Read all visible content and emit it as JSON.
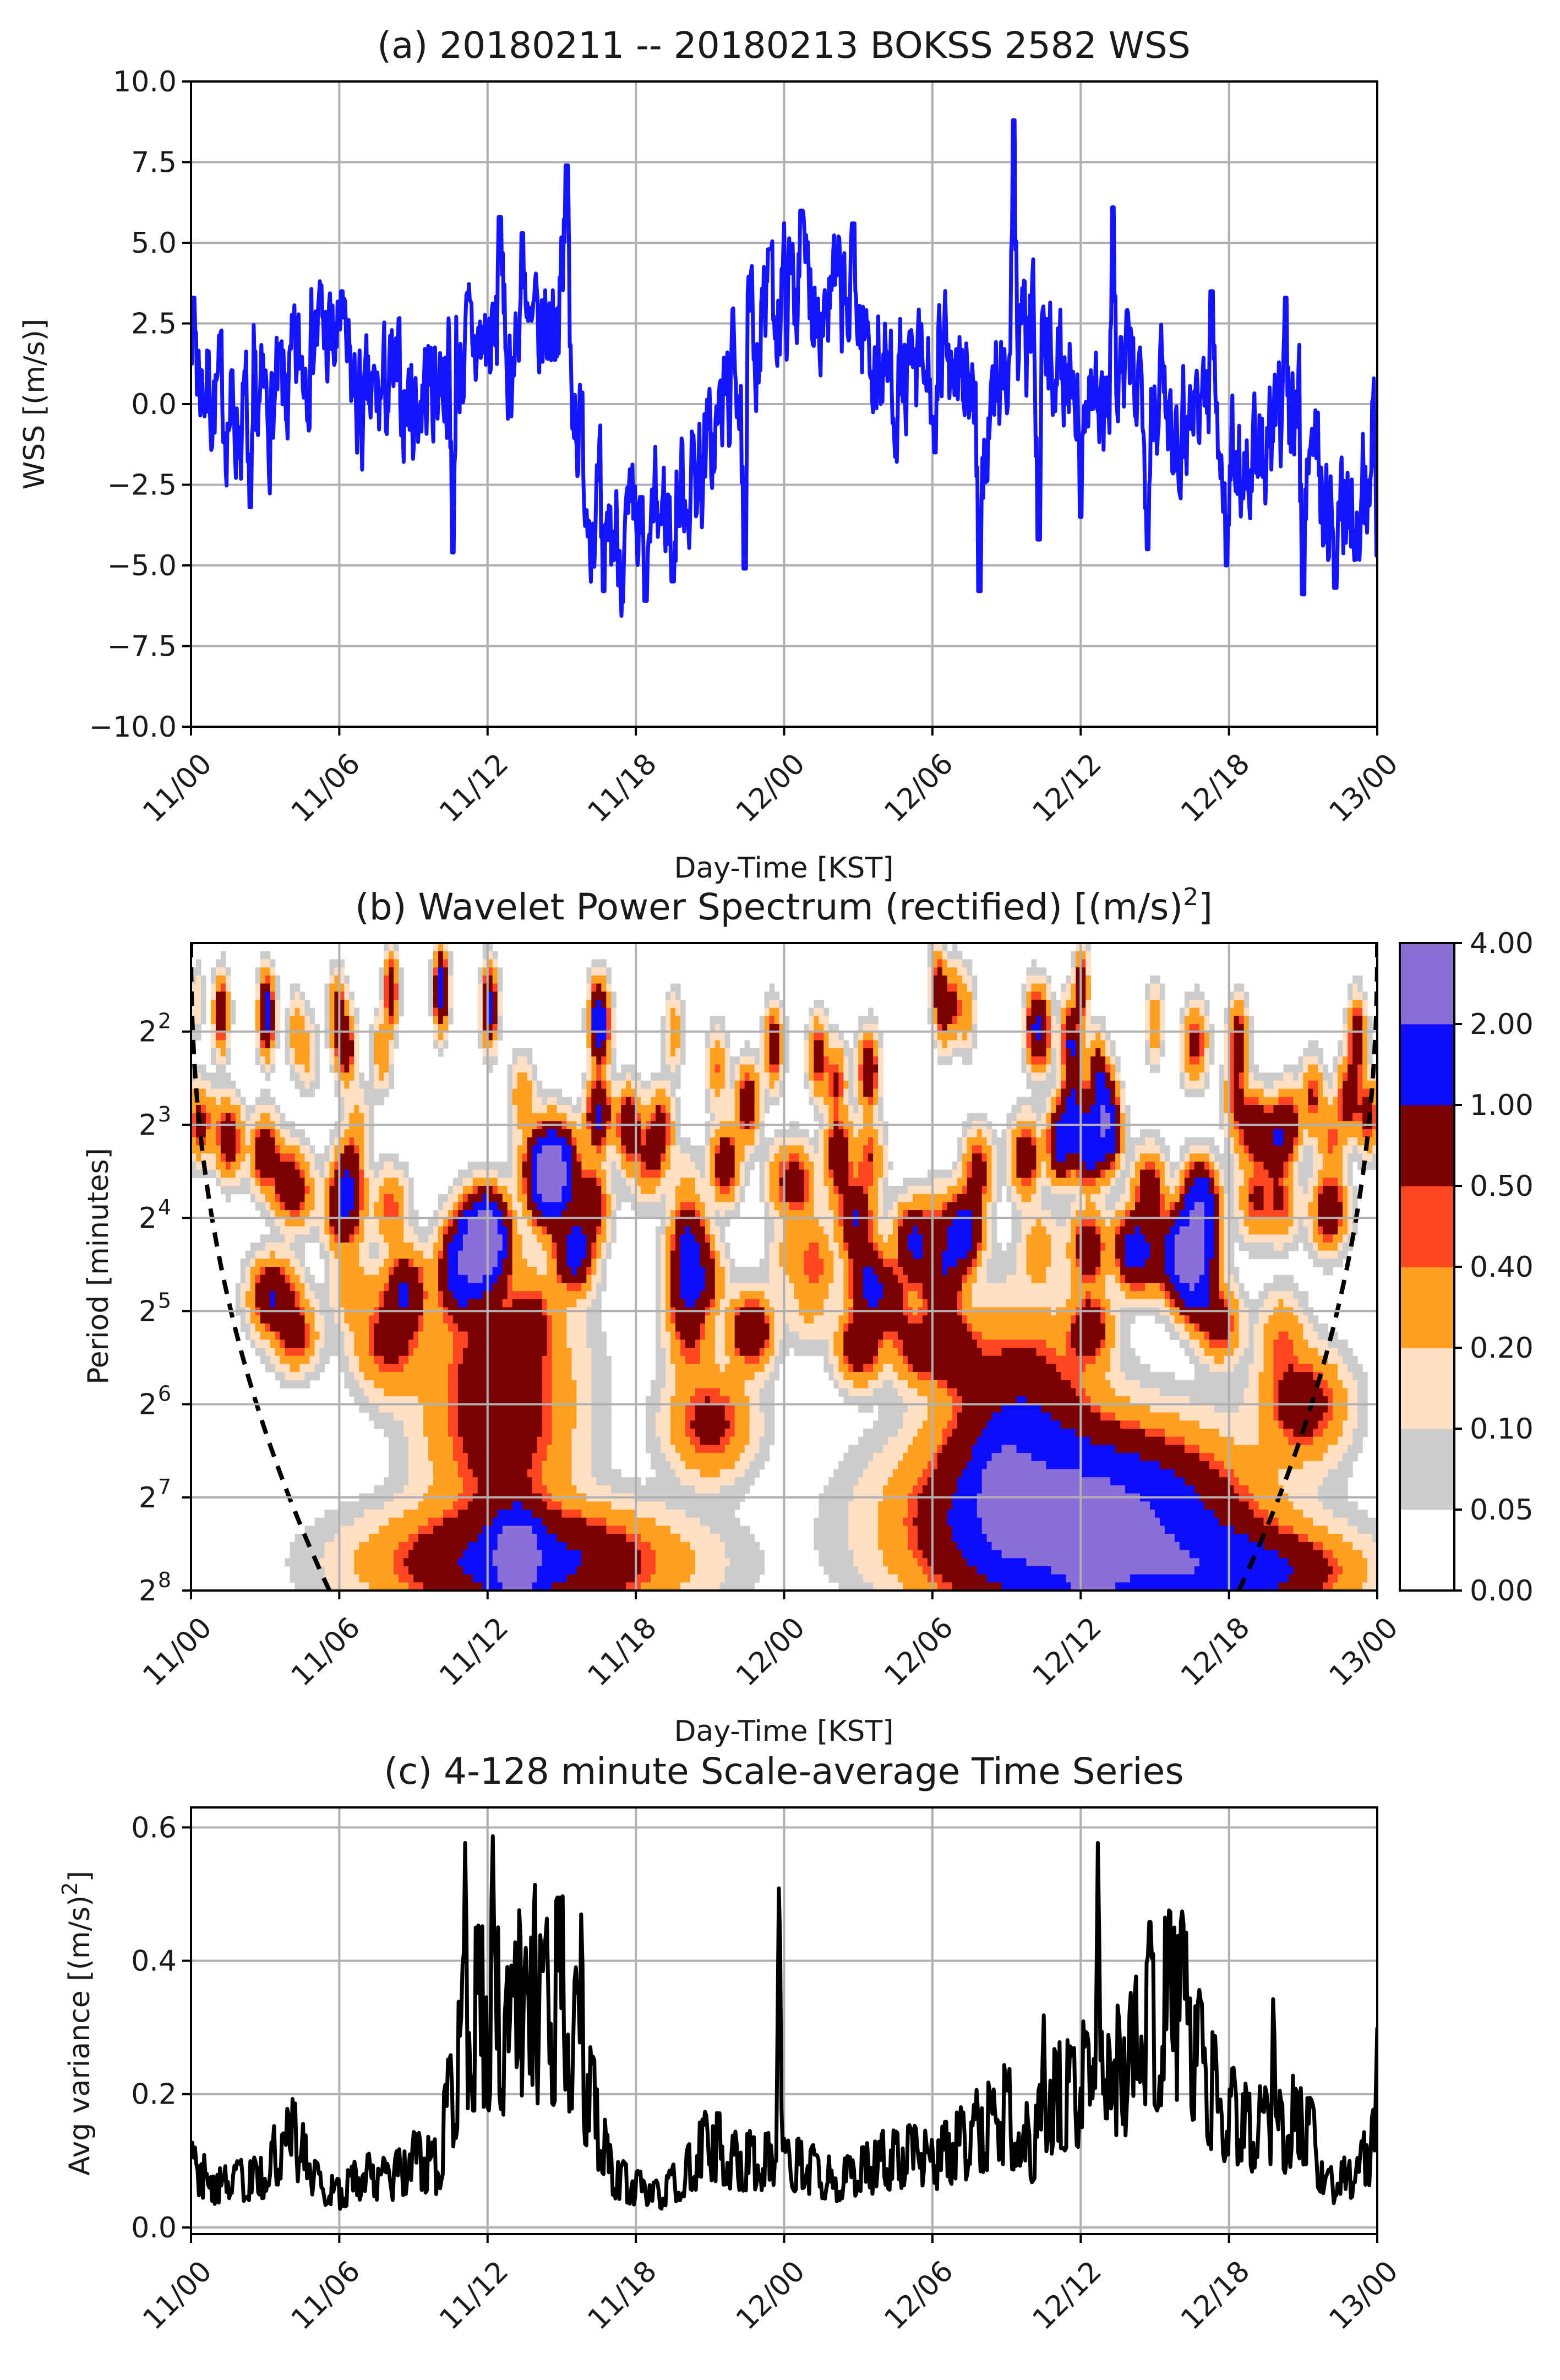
{
  "figure": {
    "panel_a_title": "(a) 20180211 -- 20180213  BOKSS 2582 WSS",
    "panel_b_title": "(b) Wavelet Power Spectrum (rectified) [(m/s)²]",
    "panel_c_title": "(c) 4-128 minute Scale-average Time Series",
    "shared_xlabel": "Day-Time [KST]"
  },
  "chart_data": [
    {
      "id": "a",
      "type": "line",
      "title": "(a) 20180211 -- 20180213  BOKSS 2582 WSS",
      "xlabel": "Day-Time [KST]",
      "ylabel": "WSS  [(m/s)]",
      "x_ticks": [
        "11/00",
        "11/06",
        "11/12",
        "11/18",
        "12/00",
        "12/06",
        "12/12",
        "12/18",
        "13/00"
      ],
      "xlim_hours": [
        0,
        48
      ],
      "ylim": [
        -10.0,
        10.0
      ],
      "y_ticks": [
        "10.0",
        "7.5",
        "5.0",
        "2.5",
        "0.0",
        "−2.5",
        "−5.0",
        "−7.5",
        "−10.0"
      ],
      "grid": true,
      "series": [
        {
          "name": "WSS",
          "color": "#1414ff",
          "x_hours": [
            0,
            1,
            2,
            3,
            4,
            5,
            6,
            7,
            8,
            9,
            10,
            11,
            12,
            13,
            14,
            15,
            16,
            17,
            18,
            19,
            20,
            21,
            22,
            23,
            24,
            25,
            26,
            27,
            28,
            29,
            30,
            31,
            32,
            33,
            34,
            35,
            36,
            37,
            38,
            39,
            40,
            41,
            42,
            43,
            44,
            45,
            46,
            47,
            48
          ],
          "values": [
            1.5,
            0.2,
            -0.5,
            -0.2,
            0.3,
            2.5,
            1.5,
            -0.5,
            0.5,
            0,
            1.0,
            1.5,
            2.0,
            1.5,
            1.8,
            3.5,
            -2.5,
            -4.0,
            -4.5,
            -3.5,
            -2.5,
            -1.5,
            1.0,
            2.5,
            3.5,
            3.8,
            3.2,
            2.5,
            1.0,
            0.5,
            0.8,
            2.0,
            -1.5,
            1.5,
            2.0,
            1.0,
            1.5,
            -0.5,
            1.0,
            0.5,
            -0.5,
            0.5,
            -1.5,
            -2.0,
            -1.0,
            0.5,
            -3.5,
            -3.0,
            -1.5
          ],
          "extremes": [
            {
              "x_hours": 0.1,
              "value": 3.3
            },
            {
              "x_hours": 2.4,
              "value": -3.2
            },
            {
              "x_hours": 6.1,
              "value": 3.5
            },
            {
              "x_hours": 10.6,
              "value": -4.6
            },
            {
              "x_hours": 12.5,
              "value": 5.8
            },
            {
              "x_hours": 13.4,
              "value": 5.3
            },
            {
              "x_hours": 15.2,
              "value": 7.4
            },
            {
              "x_hours": 16.7,
              "value": -5.8
            },
            {
              "x_hours": 18.4,
              "value": -6.1
            },
            {
              "x_hours": 19.5,
              "value": -5.5
            },
            {
              "x_hours": 22.4,
              "value": -5.1
            },
            {
              "x_hours": 23.4,
              "value": 4.8
            },
            {
              "x_hours": 24.7,
              "value": 6.0
            },
            {
              "x_hours": 26.8,
              "value": 5.6
            },
            {
              "x_hours": 30.1,
              "value": -1.5
            },
            {
              "x_hours": 31.9,
              "value": -5.8
            },
            {
              "x_hours": 33.3,
              "value": 8.8
            },
            {
              "x_hours": 34.3,
              "value": -4.2
            },
            {
              "x_hours": 36.0,
              "value": -3.5
            },
            {
              "x_hours": 37.3,
              "value": 6.1
            },
            {
              "x_hours": 38.7,
              "value": -4.5
            },
            {
              "x_hours": 41.3,
              "value": 3.5
            },
            {
              "x_hours": 41.9,
              "value": -5.0
            },
            {
              "x_hours": 44.3,
              "value": 3.3
            },
            {
              "x_hours": 45.0,
              "value": -5.9
            },
            {
              "x_hours": 46.3,
              "value": -5.7
            },
            {
              "x_hours": 47.9,
              "value": 0.8
            },
            {
              "x_hours": 48.0,
              "value": -4.7
            }
          ]
        }
      ]
    },
    {
      "id": "b",
      "type": "heatmap",
      "title": "(b) Wavelet Power Spectrum (rectified) [(m/s)²]",
      "xlabel": "Day-Time [KST]",
      "ylabel": "Period [minutes]",
      "x_ticks": [
        "11/00",
        "11/06",
        "11/12",
        "11/18",
        "12/00",
        "12/06",
        "12/12",
        "12/18",
        "13/00"
      ],
      "xlim_hours": [
        0,
        48
      ],
      "y_ticks": [
        {
          "base": "2",
          "exp": "2"
        },
        {
          "base": "2",
          "exp": "3"
        },
        {
          "base": "2",
          "exp": "4"
        },
        {
          "base": "2",
          "exp": "5"
        },
        {
          "base": "2",
          "exp": "6"
        },
        {
          "base": "2",
          "exp": "7"
        },
        {
          "base": "2",
          "exp": "8"
        }
      ],
      "ylim_log2_minutes": [
        1.05,
        8.0
      ],
      "colorbar": {
        "levels": [
          "0.00",
          "0.05",
          "0.10",
          "0.20",
          "0.40",
          "0.50",
          "1.00",
          "2.00",
          "4.00"
        ],
        "colors": [
          "#ffffff",
          "#cccccc",
          "#ffdfc4",
          "#ffa020",
          "#ff4521",
          "#7b0000",
          "#0c0cff",
          "#8b6fd6"
        ]
      },
      "cone_of_influence": "dashed black line",
      "power_maxima": [
        {
          "x_hours": 11.8,
          "log2_period": 4.3,
          "level": "4.00"
        },
        {
          "x_hours": 14.6,
          "log2_period": 3.5,
          "level": "4.00"
        },
        {
          "x_hours": 40.3,
          "log2_period": 4.4,
          "level": "4.00"
        },
        {
          "x_hours": 33.0,
          "log2_period": 7.0,
          "level": "4.00"
        },
        {
          "x_hours": 13.2,
          "log2_period": 7.65,
          "level": "2.00"
        },
        {
          "x_hours": 36.5,
          "log2_period": 7.6,
          "level": "2.00"
        }
      ]
    },
    {
      "id": "c",
      "type": "line",
      "title": "(c) 4-128 minute Scale-average Time Series",
      "xlabel": "",
      "ylabel": "Avg variance  [(m/s)²]",
      "x_ticks": [
        "11/00",
        "11/06",
        "11/12",
        "11/18",
        "12/00",
        "12/06",
        "12/12",
        "12/18",
        "13/00"
      ],
      "xlim_hours": [
        0,
        48
      ],
      "ylim": [
        -0.01,
        0.63
      ],
      "y_ticks": [
        "0.6",
        "0.4",
        "0.2",
        "0.0"
      ],
      "grid": true,
      "series": [
        {
          "name": "scale-average variance",
          "color": "#000000",
          "x_hours": [
            0,
            1,
            2,
            3,
            4,
            5,
            6,
            7,
            8,
            9,
            10,
            11,
            12,
            13,
            14,
            15,
            16,
            17,
            18,
            19,
            20,
            21,
            22,
            23,
            24,
            25,
            26,
            27,
            28,
            29,
            30,
            31,
            32,
            33,
            34,
            35,
            36,
            37,
            38,
            39,
            40,
            41,
            42,
            43,
            44,
            45,
            46,
            47,
            48
          ],
          "values": [
            0.1,
            0.06,
            0.07,
            0.08,
            0.15,
            0.07,
            0.05,
            0.08,
            0.07,
            0.1,
            0.09,
            0.3,
            0.32,
            0.3,
            0.3,
            0.35,
            0.22,
            0.08,
            0.06,
            0.05,
            0.08,
            0.13,
            0.1,
            0.1,
            0.1,
            0.09,
            0.07,
            0.08,
            0.1,
            0.11,
            0.1,
            0.12,
            0.15,
            0.17,
            0.12,
            0.2,
            0.22,
            0.2,
            0.26,
            0.3,
            0.35,
            0.22,
            0.17,
            0.15,
            0.14,
            0.17,
            0.06,
            0.08,
            0.13
          ],
          "peaks": [
            {
              "x_hours": 4.2,
              "value": 0.19
            },
            {
              "x_hours": 11.1,
              "value": 0.58
            },
            {
              "x_hours": 12.2,
              "value": 0.6
            },
            {
              "x_hours": 13.3,
              "value": 0.5
            },
            {
              "x_hours": 13.9,
              "value": 0.54
            },
            {
              "x_hours": 15.8,
              "value": 0.48
            },
            {
              "x_hours": 23.8,
              "value": 0.52
            },
            {
              "x_hours": 34.5,
              "value": 0.32
            },
            {
              "x_hours": 36.7,
              "value": 0.58
            },
            {
              "x_hours": 38.8,
              "value": 0.5
            },
            {
              "x_hours": 39.8,
              "value": 0.46
            },
            {
              "x_hours": 43.8,
              "value": 0.35
            },
            {
              "x_hours": 48.0,
              "value": 0.3
            }
          ]
        }
      ]
    }
  ]
}
